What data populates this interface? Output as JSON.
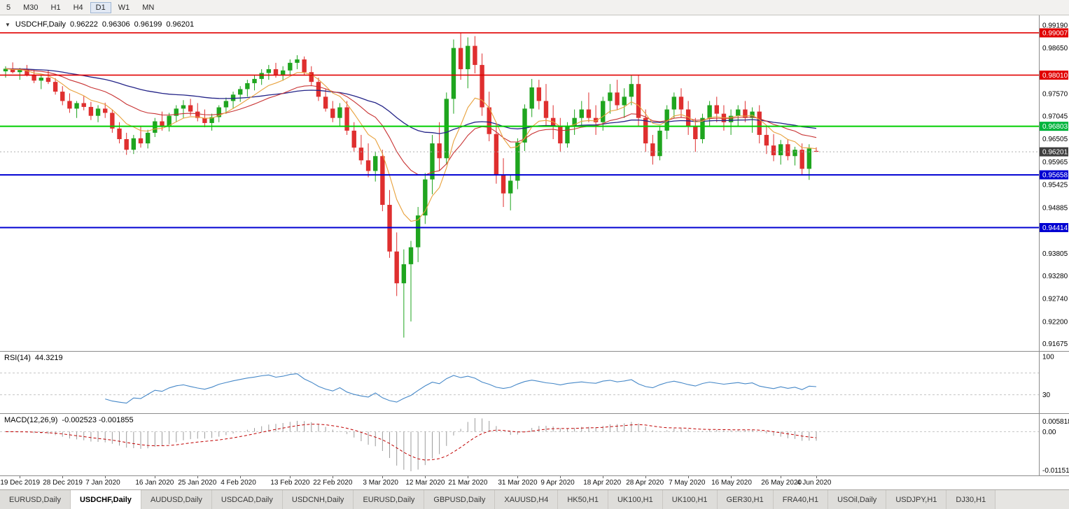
{
  "toolbar": {
    "timeframes": [
      "5",
      "M30",
      "H1",
      "H4",
      "D1",
      "W1",
      "MN"
    ],
    "active": "D1"
  },
  "chart": {
    "symbol": "USDCHF,Daily",
    "ohlc": {
      "open": "0.96222",
      "high": "0.96306",
      "low": "0.96199",
      "close": "0.96201"
    }
  },
  "price_axis": {
    "ticks": [
      "0.99190",
      "0.98650",
      "0.97570",
      "0.97045",
      "0.96505",
      "0.95965",
      "0.95425",
      "0.94885",
      "0.93805",
      "0.93280",
      "0.92740",
      "0.92200",
      "0.91675"
    ],
    "badges": [
      {
        "label": "0.99007",
        "color": "#E10000"
      },
      {
        "label": "0.98010",
        "color": "#E10000"
      },
      {
        "label": "0.96803",
        "color": "#00B43C"
      },
      {
        "label": "0.96201",
        "color": "#3F3F3F"
      },
      {
        "label": "0.95658",
        "color": "#0000D2"
      },
      {
        "label": "0.94414",
        "color": "#0000D2"
      }
    ]
  },
  "indicators": {
    "rsi": {
      "name": "RSI(14)",
      "value": "44.3219",
      "axis": [
        {
          "text": "100",
          "value": 100
        },
        {
          "text": "30",
          "value": 30
        }
      ]
    },
    "macd": {
      "name": "MACD(12,26,9)",
      "values": "-0.002523 -0.001855",
      "axis_max": "0.005818",
      "axis_zero": "0.00",
      "axis_min": "-0.01151"
    }
  },
  "time_axis": {
    "labels": [
      {
        "text": "19 Dec 2019",
        "index": 2
      },
      {
        "text": "28 Dec 2019",
        "index": 8
      },
      {
        "text": "7 Jan 2020",
        "index": 14
      },
      {
        "text": "16 Jan 2020",
        "index": 21
      },
      {
        "text": "25 Jan 2020",
        "index": 27
      },
      {
        "text": "4 Feb 2020",
        "index": 33
      },
      {
        "text": "13 Feb 2020",
        "index": 40
      },
      {
        "text": "22 Feb 2020",
        "index": 46
      },
      {
        "text": "3 Mar 2020",
        "index": 53
      },
      {
        "text": "12 Mar 2020",
        "index": 59
      },
      {
        "text": "21 Mar 2020",
        "index": 65
      },
      {
        "text": "31 Mar 2020",
        "index": 72
      },
      {
        "text": "9 Apr 2020",
        "index": 78
      },
      {
        "text": "18 Apr 2020",
        "index": 84
      },
      {
        "text": "28 Apr 2020",
        "index": 90
      },
      {
        "text": "7 May 2020",
        "index": 96
      },
      {
        "text": "16 May 2020",
        "index": 102
      },
      {
        "text": "26 May 2020",
        "index": 109
      },
      {
        "text": "4 Jun 2020",
        "index": 114
      }
    ]
  },
  "tabs": {
    "active_index": 1,
    "items": [
      "EURUSD,Daily",
      "USDCHF,Daily",
      "AUDUSD,Daily",
      "USDCAD,Daily",
      "USDCNH,Daily",
      "EURUSD,Daily",
      "GBPUSD,Daily",
      "XAUUSD,H4",
      "HK50,H1",
      "UK100,H1",
      "UK100,H1",
      "GER30,H1",
      "FRA40,H1",
      "USOil,Daily",
      "USDJPY,H1",
      "DJ30,H1"
    ]
  },
  "colors": {
    "up": "#1FA51F",
    "down": "#DF2F2F",
    "ma_fast": "#E8A13C",
    "ma_mid": "#C83232",
    "ma_slow": "#242488",
    "rsi": "#4688C8",
    "macd_hist": "#9C9C9C",
    "macd_signal": "#C00000",
    "current_price_line": "#AFAFAF"
  },
  "chart_data": {
    "type": "candlestick",
    "symbol": "USDCHF",
    "timeframe": "Daily",
    "title": "USDCHF,Daily",
    "y_range": [
      0.9152,
      0.9932
    ],
    "current_price": 0.96201,
    "indicator_params": {
      "rsi_period": 14,
      "macd": [
        12,
        26,
        9
      ],
      "ema_overlays": [
        8,
        20,
        55
      ]
    },
    "hlines": [
      {
        "name": "resistance-line-0-99007",
        "price": 0.99007,
        "color": "#E10000",
        "width": 1.6
      },
      {
        "name": "resistance-line-0-98010",
        "price": 0.9801,
        "color": "#E10000",
        "width": 1.6
      },
      {
        "name": "pivot-line-0-96803",
        "price": 0.96803,
        "color": "#00CE00",
        "width": 2
      },
      {
        "name": "support-line-0-95658",
        "price": 0.95658,
        "color": "#0000D2",
        "width": 2
      },
      {
        "name": "support-line-0-94414",
        "price": 0.94414,
        "color": "#0000D2",
        "width": 2
      }
    ],
    "ohlc": [
      [
        0.981,
        0.9822,
        0.9795,
        0.9816
      ],
      [
        0.9816,
        0.9831,
        0.9805,
        0.9808
      ],
      [
        0.9808,
        0.9818,
        0.979,
        0.9813
      ],
      [
        0.9813,
        0.9825,
        0.9798,
        0.9802
      ],
      [
        0.9802,
        0.9815,
        0.9782,
        0.9788
      ],
      [
        0.9788,
        0.98,
        0.9768,
        0.9795
      ],
      [
        0.9795,
        0.9812,
        0.978,
        0.9785
      ],
      [
        0.9785,
        0.9794,
        0.9755,
        0.9762
      ],
      [
        0.9762,
        0.9775,
        0.973,
        0.974
      ],
      [
        0.974,
        0.9758,
        0.9712,
        0.9722
      ],
      [
        0.9722,
        0.974,
        0.97,
        0.9735
      ],
      [
        0.9735,
        0.9752,
        0.9718,
        0.9726
      ],
      [
        0.9726,
        0.9738,
        0.9695,
        0.9705
      ],
      [
        0.9705,
        0.973,
        0.969,
        0.9722
      ],
      [
        0.9722,
        0.9736,
        0.97,
        0.9712
      ],
      [
        0.9712,
        0.972,
        0.9665,
        0.9675
      ],
      [
        0.9675,
        0.969,
        0.964,
        0.965
      ],
      [
        0.965,
        0.9665,
        0.9613,
        0.9625
      ],
      [
        0.9625,
        0.966,
        0.9615,
        0.9652
      ],
      [
        0.9652,
        0.968,
        0.963,
        0.964
      ],
      [
        0.964,
        0.9672,
        0.9628,
        0.9665
      ],
      [
        0.9665,
        0.97,
        0.9655,
        0.9692
      ],
      [
        0.9692,
        0.9715,
        0.967,
        0.968
      ],
      [
        0.968,
        0.9712,
        0.9668,
        0.9705
      ],
      [
        0.9705,
        0.973,
        0.969,
        0.9722
      ],
      [
        0.9722,
        0.9742,
        0.97,
        0.973
      ],
      [
        0.973,
        0.9745,
        0.9705,
        0.9715
      ],
      [
        0.9715,
        0.9735,
        0.9692,
        0.97
      ],
      [
        0.97,
        0.972,
        0.9678,
        0.9688
      ],
      [
        0.9688,
        0.971,
        0.967,
        0.9702
      ],
      [
        0.9702,
        0.973,
        0.969,
        0.9725
      ],
      [
        0.9725,
        0.9748,
        0.971,
        0.974
      ],
      [
        0.974,
        0.9762,
        0.9722,
        0.9755
      ],
      [
        0.9755,
        0.9775,
        0.9738,
        0.9768
      ],
      [
        0.9768,
        0.979,
        0.975,
        0.9782
      ],
      [
        0.9782,
        0.98,
        0.9765,
        0.9792
      ],
      [
        0.9792,
        0.9815,
        0.9778,
        0.9806
      ],
      [
        0.9806,
        0.9825,
        0.979,
        0.9815
      ],
      [
        0.9815,
        0.983,
        0.9795,
        0.9802
      ],
      [
        0.9802,
        0.9822,
        0.9788,
        0.9812
      ],
      [
        0.9812,
        0.9838,
        0.98,
        0.983
      ],
      [
        0.983,
        0.9848,
        0.9815,
        0.9838
      ],
      [
        0.9838,
        0.9845,
        0.98,
        0.9808
      ],
      [
        0.9808,
        0.9822,
        0.9775,
        0.9785
      ],
      [
        0.9785,
        0.9795,
        0.974,
        0.975
      ],
      [
        0.975,
        0.9768,
        0.9715,
        0.9722
      ],
      [
        0.9722,
        0.974,
        0.969,
        0.97
      ],
      [
        0.97,
        0.9735,
        0.968,
        0.9725
      ],
      [
        0.9725,
        0.974,
        0.966,
        0.967
      ],
      [
        0.967,
        0.969,
        0.962,
        0.963
      ],
      [
        0.963,
        0.966,
        0.959,
        0.96
      ],
      [
        0.96,
        0.964,
        0.956,
        0.9575
      ],
      [
        0.9575,
        0.962,
        0.955,
        0.961
      ],
      [
        0.961,
        0.9625,
        0.948,
        0.9495
      ],
      [
        0.9495,
        0.953,
        0.937,
        0.9385
      ],
      [
        0.9385,
        0.943,
        0.928,
        0.931
      ],
      [
        0.931,
        0.939,
        0.9182,
        0.9355
      ],
      [
        0.9355,
        0.941,
        0.922,
        0.9395
      ],
      [
        0.9395,
        0.949,
        0.936,
        0.947
      ],
      [
        0.947,
        0.957,
        0.945,
        0.9555
      ],
      [
        0.9555,
        0.966,
        0.952,
        0.964
      ],
      [
        0.964,
        0.969,
        0.9575,
        0.9605
      ],
      [
        0.9605,
        0.976,
        0.959,
        0.9745
      ],
      [
        0.9745,
        0.9885,
        0.971,
        0.9865
      ],
      [
        0.9865,
        0.9901,
        0.979,
        0.9815
      ],
      [
        0.9815,
        0.989,
        0.977,
        0.987
      ],
      [
        0.987,
        0.9893,
        0.9805,
        0.9825
      ],
      [
        0.9825,
        0.9852,
        0.9705,
        0.9725
      ],
      [
        0.9725,
        0.9762,
        0.9645,
        0.9662
      ],
      [
        0.9662,
        0.9685,
        0.9545,
        0.9565
      ],
      [
        0.9565,
        0.9605,
        0.949,
        0.9522
      ],
      [
        0.9522,
        0.9565,
        0.9482,
        0.9552
      ],
      [
        0.9552,
        0.9652,
        0.9532,
        0.9642
      ],
      [
        0.9642,
        0.9732,
        0.9622,
        0.9722
      ],
      [
        0.9722,
        0.9792,
        0.9702,
        0.9772
      ],
      [
        0.9772,
        0.979,
        0.972,
        0.974
      ],
      [
        0.974,
        0.978,
        0.968,
        0.97
      ],
      [
        0.97,
        0.973,
        0.965,
        0.968
      ],
      [
        0.968,
        0.97,
        0.962,
        0.964
      ],
      [
        0.964,
        0.969,
        0.963,
        0.968
      ],
      [
        0.968,
        0.972,
        0.966,
        0.97
      ],
      [
        0.97,
        0.974,
        0.968,
        0.972
      ],
      [
        0.972,
        0.976,
        0.969,
        0.97
      ],
      [
        0.97,
        0.973,
        0.966,
        0.969
      ],
      [
        0.969,
        0.975,
        0.967,
        0.974
      ],
      [
        0.974,
        0.978,
        0.971,
        0.976
      ],
      [
        0.976,
        0.979,
        0.972,
        0.973
      ],
      [
        0.973,
        0.977,
        0.97,
        0.975
      ],
      [
        0.975,
        0.98,
        0.973,
        0.978
      ],
      [
        0.978,
        0.98,
        0.968,
        0.97
      ],
      [
        0.97,
        0.972,
        0.962,
        0.964
      ],
      [
        0.964,
        0.966,
        0.959,
        0.961
      ],
      [
        0.961,
        0.968,
        0.96,
        0.967
      ],
      [
        0.967,
        0.973,
        0.965,
        0.972
      ],
      [
        0.972,
        0.976,
        0.97,
        0.975
      ],
      [
        0.975,
        0.977,
        0.97,
        0.972
      ],
      [
        0.972,
        0.974,
        0.966,
        0.968
      ],
      [
        0.968,
        0.97,
        0.962,
        0.965
      ],
      [
        0.965,
        0.971,
        0.964,
        0.97
      ],
      [
        0.97,
        0.974,
        0.968,
        0.973
      ],
      [
        0.973,
        0.975,
        0.969,
        0.971
      ],
      [
        0.971,
        0.973,
        0.967,
        0.969
      ],
      [
        0.969,
        0.972,
        0.966,
        0.9705
      ],
      [
        0.9705,
        0.973,
        0.968,
        0.972
      ],
      [
        0.972,
        0.974,
        0.969,
        0.97
      ],
      [
        0.97,
        0.9725,
        0.9665,
        0.9715
      ],
      [
        0.9715,
        0.973,
        0.964,
        0.966
      ],
      [
        0.966,
        0.968,
        0.9615,
        0.9635
      ],
      [
        0.9635,
        0.9662,
        0.9598,
        0.9612
      ],
      [
        0.9612,
        0.9648,
        0.959,
        0.9638
      ],
      [
        0.9638,
        0.965,
        0.96,
        0.961
      ],
      [
        0.961,
        0.9632,
        0.9588,
        0.9625
      ],
      [
        0.9625,
        0.964,
        0.9565,
        0.958
      ],
      [
        0.958,
        0.9638,
        0.9554,
        0.9628
      ],
      [
        0.96222,
        0.96306,
        0.96199,
        0.96201
      ]
    ]
  }
}
